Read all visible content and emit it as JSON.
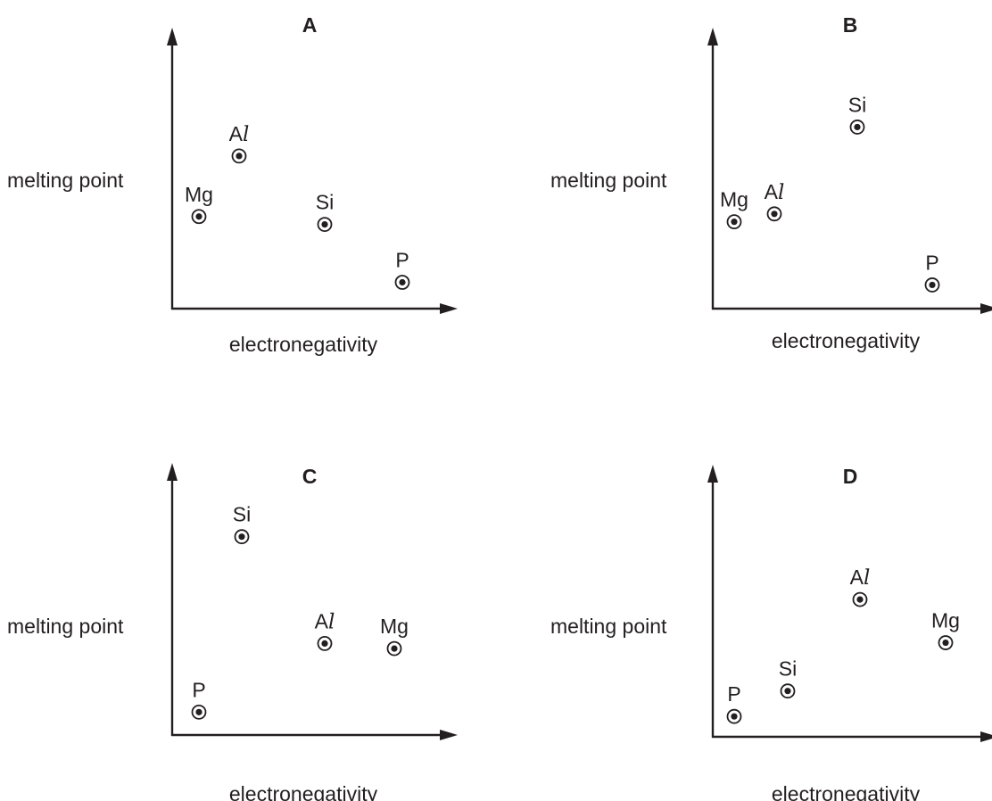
{
  "chart_data": [
    {
      "type": "scatter",
      "title": "A",
      "xlabel": "electronegativity",
      "ylabel": "melting point",
      "grid": false,
      "xlim": [
        0,
        10
      ],
      "ylim": [
        0,
        10
      ],
      "points": [
        {
          "label": "Mg",
          "x": 1.0,
          "y": 3.5
        },
        {
          "label": "Al",
          "x": 2.5,
          "y": 5.8
        },
        {
          "label": "Si",
          "x": 5.7,
          "y": 3.2
        },
        {
          "label": "P",
          "x": 8.6,
          "y": 1.0
        }
      ]
    },
    {
      "type": "scatter",
      "title": "B",
      "xlabel": "electronegativity",
      "ylabel": "melting point",
      "grid": false,
      "xlim": [
        0,
        10
      ],
      "ylim": [
        0,
        10
      ],
      "points": [
        {
          "label": "Mg",
          "x": 0.8,
          "y": 3.3
        },
        {
          "label": "Al",
          "x": 2.3,
          "y": 3.6
        },
        {
          "label": "Si",
          "x": 5.4,
          "y": 6.9
        },
        {
          "label": "P",
          "x": 8.2,
          "y": 0.9
        }
      ]
    },
    {
      "type": "scatter",
      "title": "C",
      "xlabel": "electronegativity",
      "ylabel": "melting point",
      "grid": false,
      "xlim": [
        0,
        10
      ],
      "ylim": [
        0,
        10
      ],
      "points": [
        {
          "label": "Si",
          "x": 2.6,
          "y": 7.8
        },
        {
          "label": "Al",
          "x": 5.7,
          "y": 3.6
        },
        {
          "label": "Mg",
          "x": 8.3,
          "y": 3.4
        },
        {
          "label": "P",
          "x": 1.0,
          "y": 0.9
        }
      ]
    },
    {
      "type": "scatter",
      "title": "D",
      "xlabel": "electronegativity",
      "ylabel": "melting point",
      "grid": false,
      "xlim": [
        0,
        10
      ],
      "ylim": [
        0,
        10
      ],
      "points": [
        {
          "label": "P",
          "x": 0.8,
          "y": 0.8
        },
        {
          "label": "Si",
          "x": 2.8,
          "y": 1.8
        },
        {
          "label": "Al",
          "x": 5.5,
          "y": 5.4
        },
        {
          "label": "Mg",
          "x": 8.7,
          "y": 3.7
        }
      ]
    }
  ]
}
